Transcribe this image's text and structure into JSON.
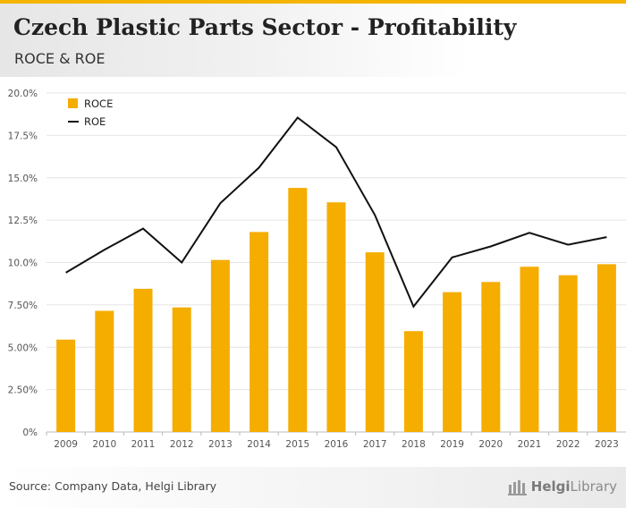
{
  "header": {
    "title": "Czech Plastic Parts Sector - Profitability",
    "subtitle": "ROCE & ROE"
  },
  "footer": {
    "source": "Source: Company Data, Helgi Library",
    "logo_part1": "Helgi",
    "logo_part2": "Library"
  },
  "colors": {
    "accent": "#f5b400",
    "roce": "#f5ad00",
    "roe": "#111111"
  },
  "chart_data": {
    "type": "bar",
    "title": "Czech Plastic Parts Sector - Profitability",
    "subtitle": "ROCE & ROE",
    "xlabel": "",
    "ylabel": "",
    "ylim": [
      0,
      20
    ],
    "yticks": [
      "0%",
      "2.50%",
      "5.00%",
      "7.50%",
      "10.0%",
      "12.5%",
      "15.0%",
      "17.5%",
      "20.0%"
    ],
    "grid": true,
    "legend_position": "top-left",
    "categories": [
      "2009",
      "2010",
      "2011",
      "2012",
      "2013",
      "2014",
      "2015",
      "2016",
      "2017",
      "2018",
      "2019",
      "2020",
      "2021",
      "2022",
      "2023"
    ],
    "series": [
      {
        "name": "ROCE",
        "kind": "bar",
        "values": [
          5.45,
          7.15,
          8.45,
          7.35,
          10.15,
          11.8,
          14.4,
          13.55,
          10.6,
          5.95,
          8.25,
          8.85,
          9.75,
          9.25,
          9.9
        ]
      },
      {
        "name": "ROE",
        "kind": "line",
        "values": [
          9.4,
          10.75,
          12.0,
          10.0,
          13.5,
          15.6,
          18.55,
          16.8,
          12.8,
          7.4,
          10.3,
          10.95,
          11.75,
          11.05,
          11.5
        ]
      }
    ]
  }
}
